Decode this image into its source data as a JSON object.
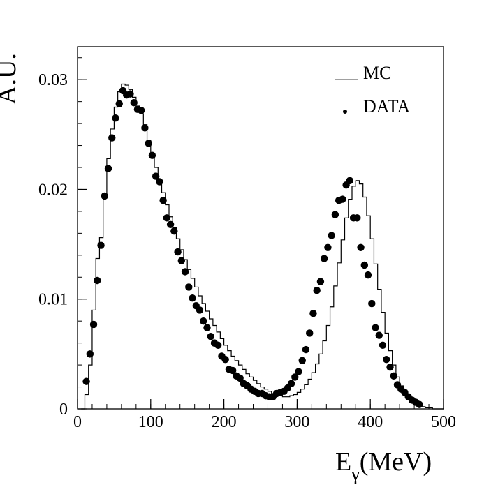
{
  "chart_data": {
    "type": "line",
    "title": "",
    "xlabel": "E",
    "xlabel_sub": "γ",
    "xlabel_unit": "(MeV)",
    "ylabel": "A.U.",
    "xlim": [
      0,
      500
    ],
    "ylim": [
      0,
      0.033
    ],
    "xticks": [
      0,
      100,
      200,
      300,
      400,
      500
    ],
    "xtick_labels": [
      "0",
      "100",
      "200",
      "300",
      "400",
      "500"
    ],
    "yticks": [
      0,
      0.01,
      0.02,
      0.03
    ],
    "ytick_labels": [
      "0",
      "0.01",
      "0.02",
      "0.03"
    ],
    "grid": false,
    "legend_position": "top-right",
    "legend": [
      {
        "label": "MC",
        "style": "line"
      },
      {
        "label": "DATA",
        "style": "marker"
      }
    ],
    "colors": {
      "mc": "#000000",
      "data": "#000000"
    },
    "series": [
      {
        "name": "MC",
        "style": "histogram",
        "bin_width": 5,
        "bin_edges_start": 5,
        "values": [
          0.0,
          0.0013,
          0.004,
          0.009,
          0.0137,
          0.0156,
          0.0195,
          0.0228,
          0.0255,
          0.0275,
          0.0289,
          0.0296,
          0.0295,
          0.0291,
          0.0284,
          0.0276,
          0.0269,
          0.0259,
          0.0245,
          0.0233,
          0.022,
          0.0209,
          0.0197,
          0.0186,
          0.0175,
          0.0165,
          0.0155,
          0.0145,
          0.0136,
          0.0127,
          0.0119,
          0.0111,
          0.0103,
          0.0096,
          0.0089,
          0.0082,
          0.0076,
          0.007,
          0.0064,
          0.0058,
          0.0053,
          0.0048,
          0.0044,
          0.004,
          0.0036,
          0.0032,
          0.0029,
          0.0026,
          0.0023,
          0.002,
          0.0018,
          0.0016,
          0.0014,
          0.0013,
          0.0012,
          0.0011,
          0.0011,
          0.0012,
          0.0013,
          0.0015,
          0.0018,
          0.0022,
          0.0027,
          0.0033,
          0.0041,
          0.005,
          0.0062,
          0.0076,
          0.0093,
          0.0112,
          0.0133,
          0.0154,
          0.0174,
          0.0191,
          0.0203,
          0.0208,
          0.0205,
          0.0193,
          0.0176,
          0.0155,
          0.0132,
          0.0109,
          0.0088,
          0.0069,
          0.0053,
          0.004,
          0.0029,
          0.0021,
          0.0015,
          0.001,
          0.0007,
          0.0004,
          0.0003,
          0.0002,
          0.0001,
          0.0001,
          0.0,
          0.0,
          0.0
        ]
      },
      {
        "name": "DATA",
        "style": "markers",
        "x": [
          12,
          17,
          22,
          27,
          32,
          37,
          42,
          47,
          52,
          57,
          62,
          67,
          72,
          77,
          82,
          87,
          92,
          97,
          102,
          107,
          112,
          117,
          122,
          127,
          132,
          137,
          142,
          147,
          152,
          157,
          162,
          167,
          172,
          177,
          182,
          187,
          192,
          197,
          202,
          207,
          212,
          217,
          222,
          227,
          232,
          237,
          242,
          247,
          252,
          257,
          262,
          267,
          272,
          277,
          282,
          287,
          292,
          297,
          302,
          307,
          312,
          317,
          322,
          327,
          332,
          337,
          342,
          347,
          352,
          357,
          362,
          367,
          372,
          377,
          382,
          387,
          392,
          397,
          402,
          407,
          412,
          417,
          422,
          427,
          432,
          437,
          442,
          447,
          452,
          457,
          462,
          467
        ],
        "y": [
          0.0025,
          0.005,
          0.0077,
          0.0117,
          0.0149,
          0.0194,
          0.0219,
          0.0247,
          0.0265,
          0.0278,
          0.029,
          0.0286,
          0.0287,
          0.0279,
          0.0273,
          0.0272,
          0.0256,
          0.0242,
          0.0231,
          0.0212,
          0.0207,
          0.019,
          0.0174,
          0.0168,
          0.0162,
          0.0143,
          0.0135,
          0.0125,
          0.0111,
          0.0101,
          0.0094,
          0.009,
          0.008,
          0.0074,
          0.0066,
          0.006,
          0.0058,
          0.0048,
          0.0045,
          0.0036,
          0.0035,
          0.003,
          0.0028,
          0.0023,
          0.0021,
          0.0018,
          0.0016,
          0.0014,
          0.0014,
          0.0012,
          0.0011,
          0.0011,
          0.0014,
          0.0015,
          0.0016,
          0.0019,
          0.0023,
          0.0029,
          0.0034,
          0.0044,
          0.0054,
          0.0069,
          0.0087,
          0.0108,
          0.0116,
          0.0137,
          0.0147,
          0.0158,
          0.0177,
          0.019,
          0.0191,
          0.0204,
          0.0208,
          0.0174,
          0.0174,
          0.0147,
          0.0131,
          0.0122,
          0.0096,
          0.0074,
          0.0067,
          0.0058,
          0.0045,
          0.0038,
          0.003,
          0.0022,
          0.0018,
          0.0015,
          0.0011,
          0.0008,
          0.0006,
          0.0004
        ]
      }
    ]
  }
}
